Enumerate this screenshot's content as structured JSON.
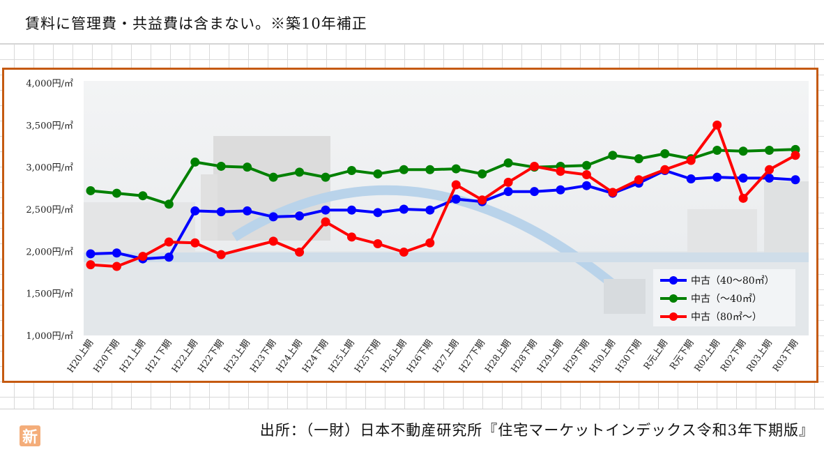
{
  "note": "賃料に管理費・共益費は含まない。※築10年補正",
  "source": "出所：（一財）日本不動産研究所『住宅マーケットインデックス令和3年下期版』",
  "badge": "新",
  "chart_data": {
    "type": "line",
    "title": "",
    "xlabel": "",
    "ylabel": "",
    "ylim": [
      1000,
      4000
    ],
    "yticks": [
      1000,
      1500,
      2000,
      2500,
      3000,
      3500,
      4000
    ],
    "ytick_labels": [
      "1,000円/㎡",
      "1,500円/㎡",
      "2,000円/㎡",
      "2,500円/㎡",
      "3,000円/㎡",
      "3,500円/㎡",
      "4,000円/㎡"
    ],
    "grid": false,
    "legend_position": "bottom-right",
    "categories": [
      "H20上期",
      "H20下期",
      "H21上期",
      "H21下期",
      "H22上期",
      "H22下期",
      "H23上期",
      "H23下期",
      "H24上期",
      "H24下期",
      "H25上期",
      "H25下期",
      "H26上期",
      "H26下期",
      "H27上期",
      "H27下期",
      "H28上期",
      "H28下期",
      "H29上期",
      "H29下期",
      "H30上期",
      "H30下期",
      "R元上期",
      "R元下期",
      "R02上期",
      "R02下期",
      "R03上期",
      "R03下期"
    ],
    "series": [
      {
        "name": "中古（40〜80㎡）",
        "color": "#0000ff",
        "values": [
          1970,
          1980,
          1910,
          1930,
          2480,
          2470,
          2480,
          2410,
          2420,
          2490,
          2490,
          2460,
          2500,
          2490,
          2620,
          2590,
          2710,
          2710,
          2730,
          2780,
          2690,
          2810,
          2960,
          2860,
          2880,
          2870,
          2870,
          2850
        ]
      },
      {
        "name": "中古（〜40㎡）",
        "color": "#008000",
        "values": [
          2720,
          2690,
          2660,
          2560,
          3060,
          3010,
          3000,
          2880,
          2940,
          2880,
          2960,
          2920,
          2970,
          2970,
          2980,
          2920,
          3050,
          3000,
          3010,
          3020,
          3140,
          3100,
          3160,
          3100,
          3200,
          3190,
          3200,
          3210
        ]
      },
      {
        "name": "中古（80㎡〜）",
        "color": "#ff0000",
        "values": [
          1840,
          1820,
          1940,
          2110,
          2100,
          1960,
          null,
          2120,
          1990,
          2350,
          2170,
          2090,
          1990,
          2100,
          2790,
          2610,
          2820,
          3010,
          2950,
          2910,
          2700,
          2850,
          2970,
          3080,
          3500,
          2630,
          2970,
          3140
        ]
      }
    ]
  }
}
